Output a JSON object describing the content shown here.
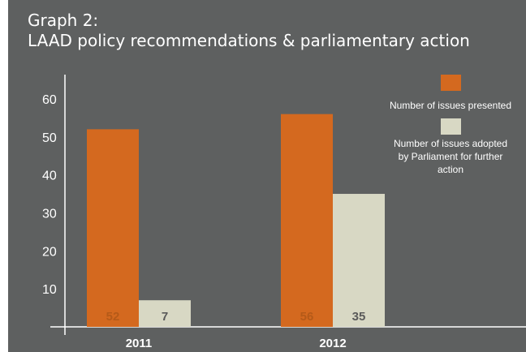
{
  "chart_data": {
    "type": "bar",
    "title_line1": "Graph 2:",
    "title_line2": "LAAD policy recommendations & parliamentary action",
    "categories": [
      "2011",
      "2012"
    ],
    "series": [
      {
        "name": "Number of issues presented",
        "values": [
          52,
          56
        ],
        "color": "#d4691f"
      },
      {
        "name": "Number of issues adopted by Parliament for further action",
        "values": [
          7,
          35
        ],
        "color": "#d8d8c4"
      }
    ],
    "legend_lines": [
      [
        "Number of issues presented"
      ],
      [
        "Number of issues adopted",
        "by Parliament for further",
        "action"
      ]
    ],
    "y_ticks": [
      10,
      20,
      30,
      40,
      50,
      60
    ],
    "ylim": [
      0,
      65
    ],
    "grid": false,
    "legend_position": "top-right",
    "label_colors": [
      "#b55a18",
      "#5a5a5a"
    ]
  }
}
